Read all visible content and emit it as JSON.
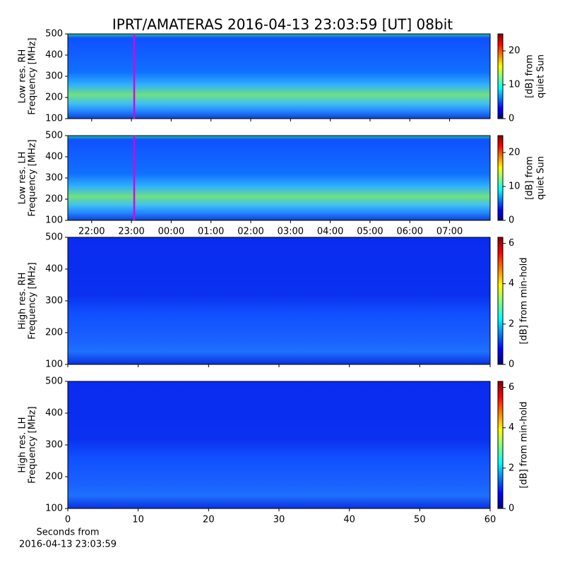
{
  "title": "IPRT/AMATERAS 2016-04-13 23:03:59 [UT]   08bit",
  "chart_data": [
    {
      "type": "heatmap",
      "ylabel": [
        "Low res. RH",
        "Frequency [MHz]"
      ],
      "ylim": [
        100,
        500
      ],
      "yticks": [
        100,
        200,
        300,
        400,
        500
      ],
      "xlim": [
        21.4,
        32.02
      ],
      "xticks": [
        {
          "value": 22,
          "label": "22:00"
        },
        {
          "value": 23,
          "label": "23:00"
        },
        {
          "value": 24,
          "label": "00:00"
        },
        {
          "value": 25,
          "label": "01:00"
        },
        {
          "value": 26,
          "label": "02:00"
        },
        {
          "value": 27,
          "label": "03:00"
        },
        {
          "value": 28,
          "label": "04:00"
        },
        {
          "value": 29,
          "label": "05:00"
        },
        {
          "value": 30,
          "label": "06:00"
        },
        {
          "value": 31,
          "label": "07:00"
        }
      ],
      "show_xtick_labels": false,
      "marker_x": 23.07,
      "marker_color": "#e000e0",
      "colormap": "jet",
      "clim": [
        0,
        25
      ],
      "cticks": [
        0,
        10,
        20
      ],
      "colorbar_label": [
        "[dB] from",
        "quiet Sun"
      ]
    },
    {
      "type": "heatmap",
      "ylabel": [
        "Low res. LH",
        "Frequency [MHz]"
      ],
      "ylim": [
        100,
        500
      ],
      "yticks": [
        100,
        200,
        300,
        400,
        500
      ],
      "xlim": [
        21.4,
        32.02
      ],
      "xticks": [
        {
          "value": 22,
          "label": "22:00"
        },
        {
          "value": 23,
          "label": "23:00"
        },
        {
          "value": 24,
          "label": "00:00"
        },
        {
          "value": 25,
          "label": "01:00"
        },
        {
          "value": 26,
          "label": "02:00"
        },
        {
          "value": 27,
          "label": "03:00"
        },
        {
          "value": 28,
          "label": "04:00"
        },
        {
          "value": 29,
          "label": "05:00"
        },
        {
          "value": 30,
          "label": "06:00"
        },
        {
          "value": 31,
          "label": "07:00"
        }
      ],
      "show_xtick_labels": true,
      "marker_x": 23.07,
      "marker_color": "#e000e0",
      "colormap": "jet",
      "clim": [
        0,
        25
      ],
      "cticks": [
        0,
        10,
        20
      ],
      "colorbar_label": [
        "[dB] from",
        "quiet Sun"
      ]
    },
    {
      "type": "heatmap",
      "ylabel": [
        "High res. RH",
        "Frequency [MHz]"
      ],
      "ylim": [
        100,
        500
      ],
      "yticks": [
        100,
        200,
        300,
        400,
        500
      ],
      "xlim": [
        0,
        60
      ],
      "xticks": [
        0,
        10,
        20,
        30,
        40,
        50,
        60
      ],
      "show_xtick_labels": false,
      "colormap": "jet",
      "clim": [
        0,
        6.3
      ],
      "cticks": [
        0,
        2,
        4,
        6
      ],
      "colorbar_label": [
        "[dB] from min-hold"
      ]
    },
    {
      "type": "heatmap",
      "ylabel": [
        "High res. LH",
        "Frequency [MHz]"
      ],
      "ylim": [
        100,
        500
      ],
      "yticks": [
        100,
        200,
        300,
        400,
        500
      ],
      "xlim": [
        0,
        60
      ],
      "xticks": [
        0,
        10,
        20,
        30,
        40,
        50,
        60
      ],
      "show_xtick_labels": true,
      "xlabel": [
        "Seconds from",
        "2016-04-13 23:03:59"
      ],
      "colormap": "jet",
      "clim": [
        0,
        6.3
      ],
      "cticks": [
        0,
        2,
        4,
        6
      ],
      "colorbar_label": [
        "[dB] from min-hold"
      ]
    }
  ]
}
